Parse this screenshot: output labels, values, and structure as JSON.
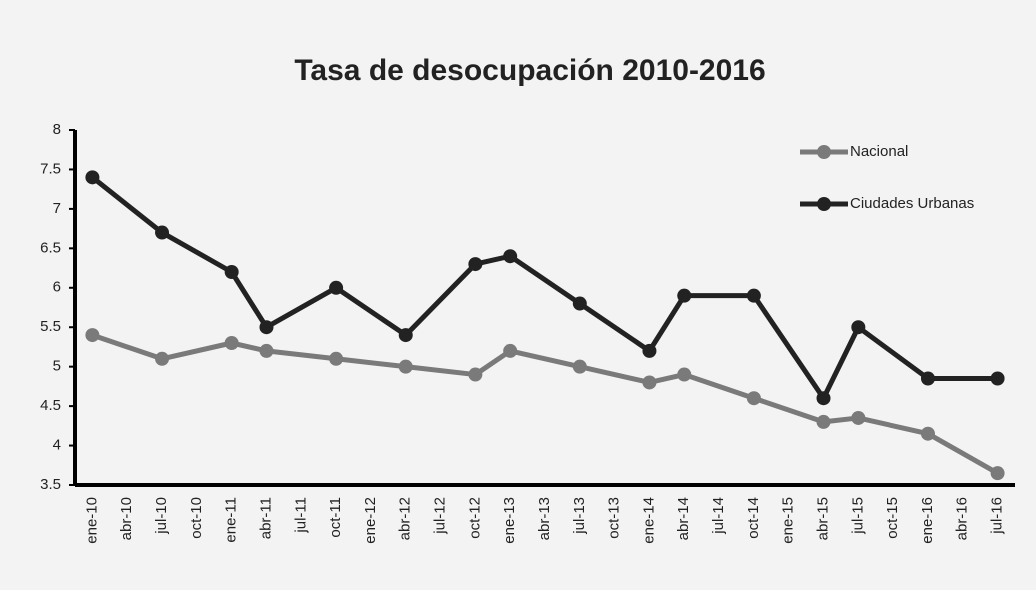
{
  "chart_data": {
    "type": "line",
    "title": "Tasa de desocupación 2010-2016",
    "categories": [
      "ene-10",
      "abr-10",
      "jul-10",
      "oct-10",
      "ene-11",
      "abr-11",
      "jul-11",
      "oct-11",
      "ene-12",
      "abr-12",
      "jul-12",
      "oct-12",
      "ene-13",
      "abr-13",
      "jul-13",
      "oct-13",
      "ene-14",
      "abr-14",
      "jul-14",
      "oct-14",
      "ene-15",
      "abr-15",
      "jul-15",
      "oct-15",
      "ene-16",
      "abr-16",
      "jul-16"
    ],
    "series": [
      {
        "name": "Nacional",
        "color": "#7a7a7a",
        "values": [
          5.4,
          null,
          5.1,
          null,
          5.3,
          5.2,
          null,
          5.1,
          null,
          5.0,
          null,
          4.9,
          5.2,
          null,
          5.0,
          null,
          4.8,
          4.9,
          null,
          4.6,
          null,
          4.3,
          4.35,
          null,
          4.15,
          null,
          3.65
        ]
      },
      {
        "name": "Ciudades Urbanas",
        "color": "#222222",
        "values": [
          7.4,
          null,
          6.7,
          null,
          6.2,
          5.5,
          null,
          6.0,
          null,
          5.4,
          null,
          6.3,
          6.4,
          null,
          5.8,
          null,
          5.2,
          5.9,
          null,
          5.9,
          null,
          4.6,
          5.5,
          null,
          4.85,
          null,
          4.85
        ]
      }
    ],
    "connect_gaps": true,
    "ylim": [
      3.5,
      8
    ],
    "yticks": [
      3.5,
      4,
      4.5,
      5,
      5.5,
      6,
      6.5,
      7,
      7.5,
      8
    ],
    "legend": "top-right"
  }
}
